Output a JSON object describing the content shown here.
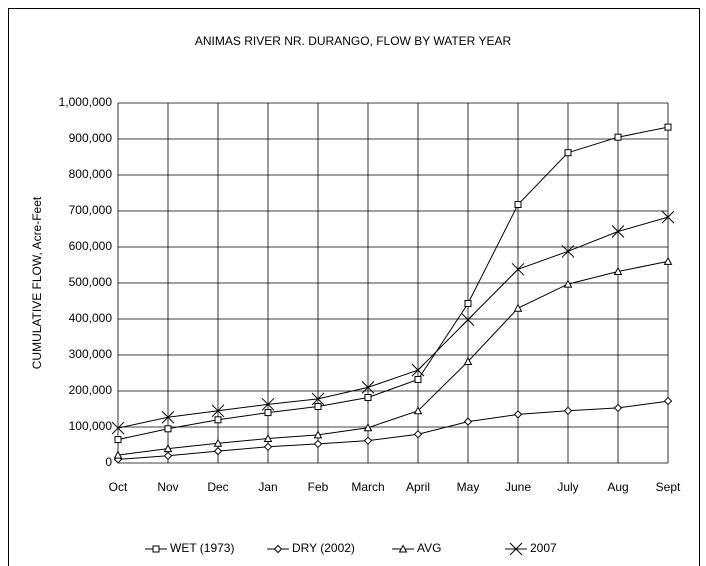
{
  "chart_data": {
    "type": "line",
    "title": "ANIMAS RIVER NR. DURANGO, FLOW BY WATER YEAR",
    "y_label": "CUMULATIVE FLOW, Acre-Feet",
    "categories": [
      "Oct",
      "Nov",
      "Dec",
      "Jan",
      "Feb",
      "March",
      "April",
      "May",
      "June",
      "July",
      "Aug",
      "Sept"
    ],
    "series": [
      {
        "name": "WET (1973)",
        "color": "#000000",
        "marker": "square",
        "values": [
          65000,
          95000,
          120000,
          140000,
          157000,
          182000,
          232000,
          443000,
          718000,
          862000,
          905000,
          933000
        ]
      },
      {
        "name": "DRY (2002)",
        "color": "#000000",
        "marker": "diamond",
        "values": [
          10000,
          20000,
          33000,
          45000,
          53000,
          62000,
          80000,
          115000,
          135000,
          145000,
          153000,
          172000
        ]
      },
      {
        "name": "AVG",
        "color": "#000000",
        "marker": "triangle",
        "values": [
          22000,
          40000,
          55000,
          68000,
          78000,
          98000,
          145000,
          282000,
          430000,
          497000,
          532000,
          560000
        ]
      },
      {
        "name": "2007",
        "color": "#000000",
        "marker": "x",
        "values": [
          97000,
          127000,
          145000,
          163000,
          178000,
          210000,
          258000,
          398000,
          538000,
          588000,
          643000,
          683000
        ]
      }
    ],
    "ylim": [
      0,
      1000000
    ],
    "yticks": [
      0,
      {
        "value": 100000,
        "label": "100,000"
      },
      {
        "value": 200000,
        "label": "200,000"
      },
      {
        "value": 300000,
        "label": "300,000"
      },
      {
        "value": 400000,
        "label": "400,000"
      },
      {
        "value": 500000,
        "label": "500,000"
      },
      {
        "value": 600000,
        "label": "600,000"
      },
      {
        "value": 700000,
        "label": "700,000"
      },
      {
        "value": 800000,
        "label": "800,000"
      },
      {
        "value": 900000,
        "label": "900,000"
      },
      {
        "value": 1000000,
        "label": "1,000,000"
      }
    ],
    "grid": true,
    "legend": "bottom"
  }
}
